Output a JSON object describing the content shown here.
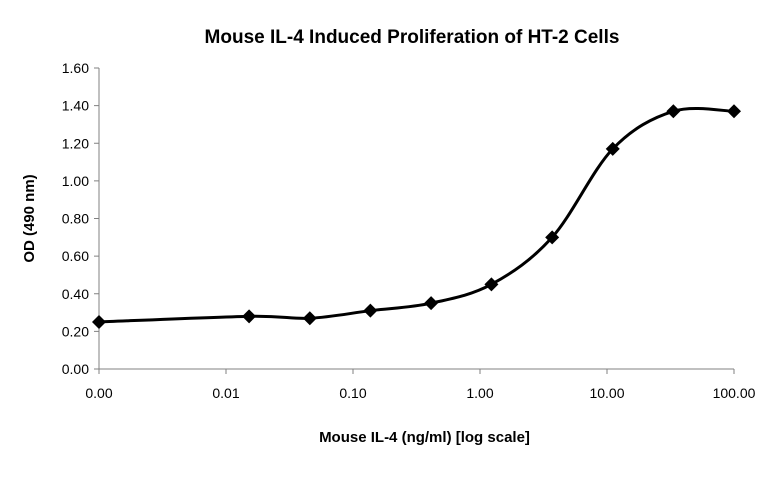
{
  "chart_data": {
    "type": "line",
    "title": "Mouse IL-4 Induced Proliferation of HT-2 Cells",
    "xlabel": "Mouse IL-4 (ng/ml) [log scale]",
    "ylabel": "OD (490 nm)",
    "x_scale": "log",
    "x_tick_labels": [
      "0.00",
      "0.01",
      "0.10",
      "1.00",
      "10.00",
      "100.00"
    ],
    "x_tick_values": [
      0.001,
      0.01,
      0.1,
      1,
      10,
      100
    ],
    "y_tick_labels": [
      "0.00",
      "0.20",
      "0.40",
      "0.60",
      "0.80",
      "1.00",
      "1.20",
      "1.40",
      "1.60"
    ],
    "y_tick_values": [
      0,
      0.2,
      0.4,
      0.6,
      0.8,
      1.0,
      1.2,
      1.4,
      1.6
    ],
    "xlim": [
      0.001,
      100
    ],
    "ylim": [
      0,
      1.6
    ],
    "grid": false,
    "series": [
      {
        "color": "#000000",
        "marker": "diamond",
        "smooth": true,
        "x": [
          0.001,
          0.0152,
          0.0457,
          0.137,
          0.412,
          1.23,
          3.7,
          11.1,
          33.3,
          100
        ],
        "y": [
          0.25,
          0.28,
          0.27,
          0.31,
          0.35,
          0.45,
          0.7,
          1.17,
          1.37,
          1.37
        ]
      }
    ]
  }
}
